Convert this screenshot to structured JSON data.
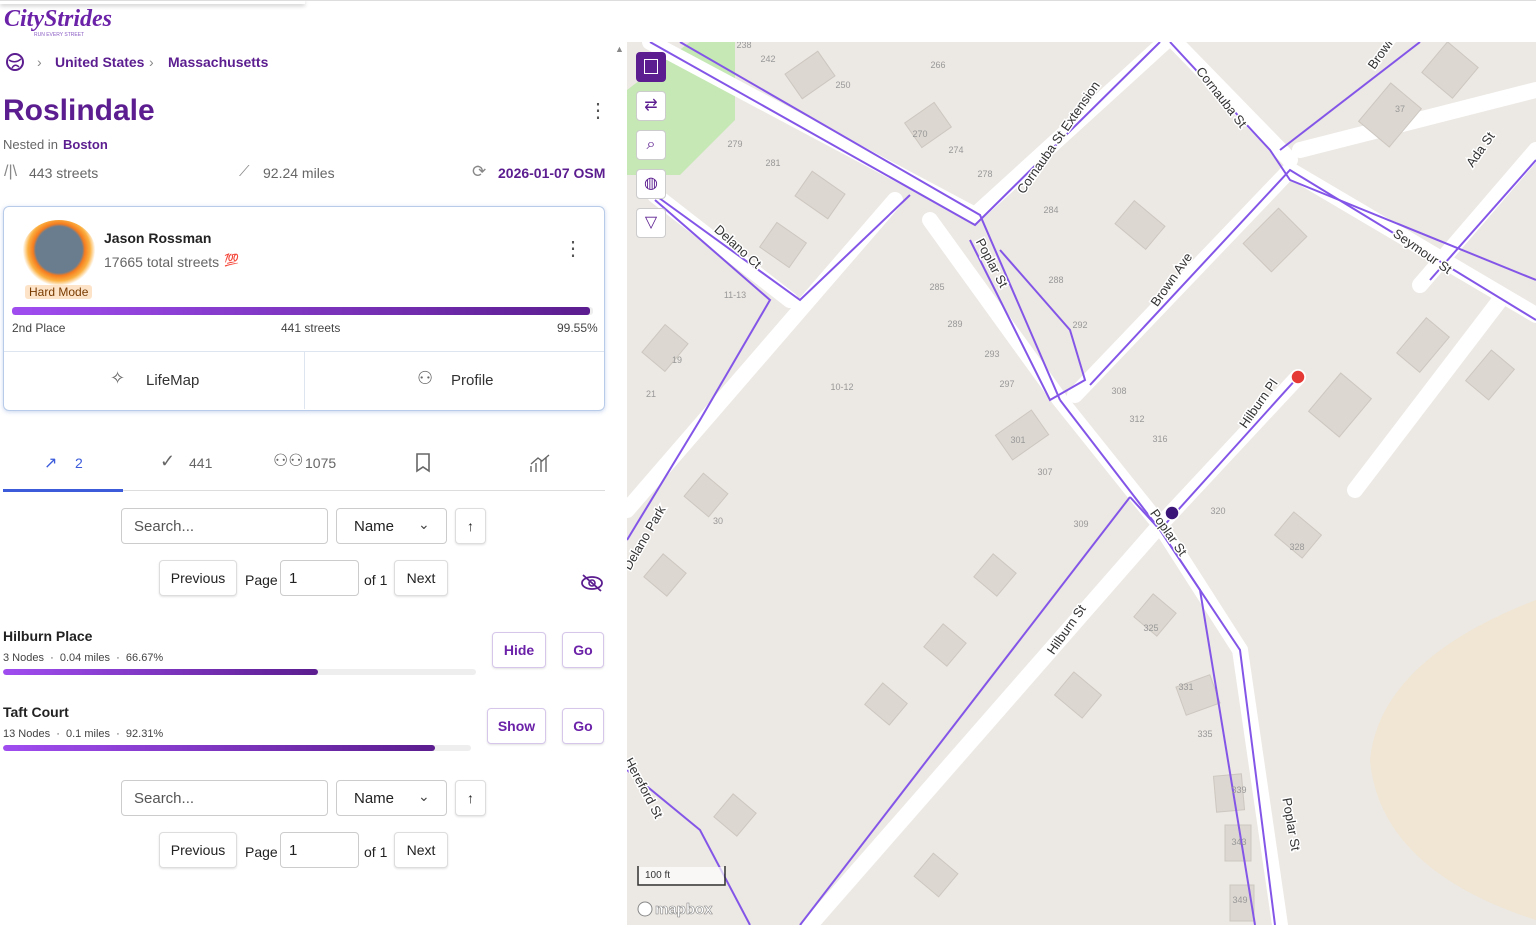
{
  "header": {
    "logo": "CityStrides",
    "tagline": "RUN EVERY STREET"
  },
  "breadcrumb": [
    "United States",
    "Massachusetts"
  ],
  "city": {
    "name": "Roslindale",
    "nested_label": "Nested in",
    "nested_in": "Boston",
    "streets": "443 streets",
    "miles": "92.24 miles",
    "updated": "2026-01-07 OSM"
  },
  "leader": {
    "name": "Jason Rossman",
    "total": "17665 total streets",
    "badge": "💯",
    "mode": "Hard Mode",
    "place": "2nd Place",
    "streets": "441 streets",
    "percent": "99.55%",
    "progress": 99.55,
    "buttons": [
      "LifeMap",
      "Profile"
    ]
  },
  "tabs": [
    "2",
    "441",
    "1075"
  ],
  "controls": {
    "search": "Search...",
    "sort": "Name",
    "sort_dir": "↑",
    "previous": "Previous",
    "page_label": "Page",
    "page": "1",
    "of": "of 1",
    "next": "Next"
  },
  "streets": [
    {
      "name": "Hilburn Place",
      "nodes": "3 Nodes",
      "miles": "0.04 miles",
      "percent": "66.67%",
      "progress": 66.67,
      "action": "Hide",
      "go": "Go"
    },
    {
      "name": "Taft Court",
      "nodes": "13 Nodes",
      "miles": "0.1 miles",
      "percent": "92.31%",
      "progress": 92.31,
      "action": "Show",
      "go": "Go"
    }
  ],
  "map": {
    "streets": [
      "Poplar St",
      "Poplar St",
      "Poplar St",
      "Cornauba St Extension",
      "Cornauba St",
      "Brown Ave",
      "Hilburn St",
      "Hilburn Pl",
      "Delano Ct",
      "Delano Park",
      "Seymour St",
      "Ada St",
      "Brown",
      "Hereford St"
    ],
    "house_numbers": [
      "238",
      "242",
      "250",
      "266",
      "270",
      "274",
      "278",
      "279",
      "281",
      "284",
      "285",
      "288",
      "289",
      "292",
      "293",
      "297",
      "301",
      "307",
      "308",
      "309",
      "312",
      "316",
      "320",
      "325",
      "328",
      "331",
      "335",
      "339",
      "343",
      "349",
      "10-12",
      "11-13",
      "19",
      "21",
      "30",
      "37"
    ],
    "scale": "100 ft",
    "attribution": "mapbox"
  }
}
